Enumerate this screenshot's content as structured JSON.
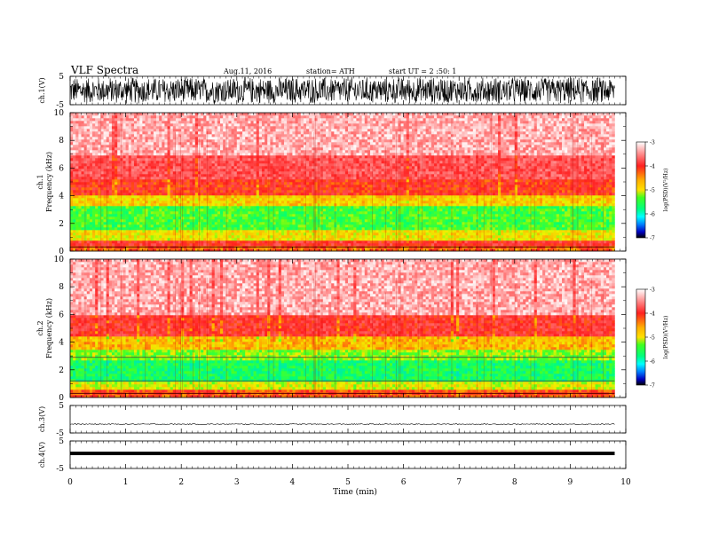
{
  "header": {
    "title": "VLF  Spectra",
    "date": "Aug.11, 2016",
    "station": "station= ATH",
    "start": "start  UT  =   2  :50: 1"
  },
  "chart_data": [
    {
      "type": "line",
      "id": "ch1-waveform",
      "ylabel": "ch.1(V)",
      "ylim": [
        -5,
        5
      ],
      "y_ticks": [
        "5",
        "-5"
      ],
      "xlim": [
        0,
        10
      ],
      "x_data_end": 9.8,
      "description_values": {
        "amplitude_min": -5,
        "amplitude_max": 5
      }
    },
    {
      "type": "heatmap",
      "id": "ch1-spectrogram",
      "ylabel": [
        "ch.1",
        "Frequency  (kHz)"
      ],
      "ylim": [
        0,
        10
      ],
      "y_ticks": [
        "0",
        "2",
        "4",
        "6",
        "8",
        "10"
      ],
      "xlim": [
        0,
        10
      ],
      "x_data_end": 9.8,
      "bands": [
        {
          "from": 0.0,
          "to": 0.3,
          "level": -4.2
        },
        {
          "from": 0.3,
          "to": 0.8,
          "level": -3.9
        },
        {
          "from": 0.8,
          "to": 1.5,
          "level": -4.7
        },
        {
          "from": 1.5,
          "to": 3.2,
          "level": -5.2
        },
        {
          "from": 3.2,
          "to": 4.0,
          "level": -4.6
        },
        {
          "from": 4.0,
          "to": 5.2,
          "level": -4.0
        },
        {
          "from": 5.2,
          "to": 7.0,
          "level": -3.7
        },
        {
          "from": 7.0,
          "to": 10.0,
          "level": -3.3
        }
      ]
    },
    {
      "type": "heatmap",
      "id": "ch2-spectrogram",
      "ylabel": [
        "ch.2",
        "Frequency  (kHz)"
      ],
      "ylim": [
        0,
        10
      ],
      "y_ticks": [
        "0",
        "2",
        "4",
        "6",
        "8",
        "10"
      ],
      "xlim": [
        0,
        10
      ],
      "x_data_end": 9.8,
      "bands": [
        {
          "from": 0.0,
          "to": 0.5,
          "level": -4.1
        },
        {
          "from": 0.5,
          "to": 1.2,
          "level": -4.8
        },
        {
          "from": 1.2,
          "to": 2.6,
          "level": -5.4
        },
        {
          "from": 2.6,
          "to": 3.4,
          "level": -5.0
        },
        {
          "from": 3.4,
          "to": 4.5,
          "level": -4.5
        },
        {
          "from": 4.5,
          "to": 6.0,
          "level": -3.9
        },
        {
          "from": 6.0,
          "to": 10.0,
          "level": -3.3
        }
      ],
      "horizontal_lines_khz": [
        1.2,
        2.9
      ]
    },
    {
      "type": "line",
      "id": "ch3-waveform",
      "ylabel": "ch.3(V)",
      "ylim": [
        -5,
        5
      ],
      "y_ticks": [
        "5",
        "-5"
      ],
      "xlim": [
        0,
        10
      ],
      "x_data_end": 9.8,
      "level_v": -1.8
    },
    {
      "type": "line",
      "id": "ch4-waveform",
      "ylabel": "ch.4(V)",
      "ylim": [
        -5,
        5
      ],
      "y_ticks": [
        "5",
        "-5"
      ],
      "xlim": [
        0,
        10
      ],
      "x_data_end": 9.8,
      "level_v": 0.5
    }
  ],
  "x_axis": {
    "label": "Time  (min)",
    "ticks": [
      "0",
      "1",
      "2",
      "3",
      "4",
      "5",
      "6",
      "7",
      "8",
      "9",
      "10"
    ]
  },
  "colorbar": {
    "label": "log(PSD)(V²/Hz)",
    "range": [
      -7,
      -3
    ],
    "ticks": [
      "-3",
      "-4",
      "-5",
      "-6",
      "-7"
    ]
  },
  "colors": {
    "c_m3": "#ffffff",
    "c_m35": "#ff2020",
    "c_m45": "#ffe000",
    "c_m5": "#20ff20",
    "c_m6": "#0080ff",
    "c_m7": "#000000"
  }
}
